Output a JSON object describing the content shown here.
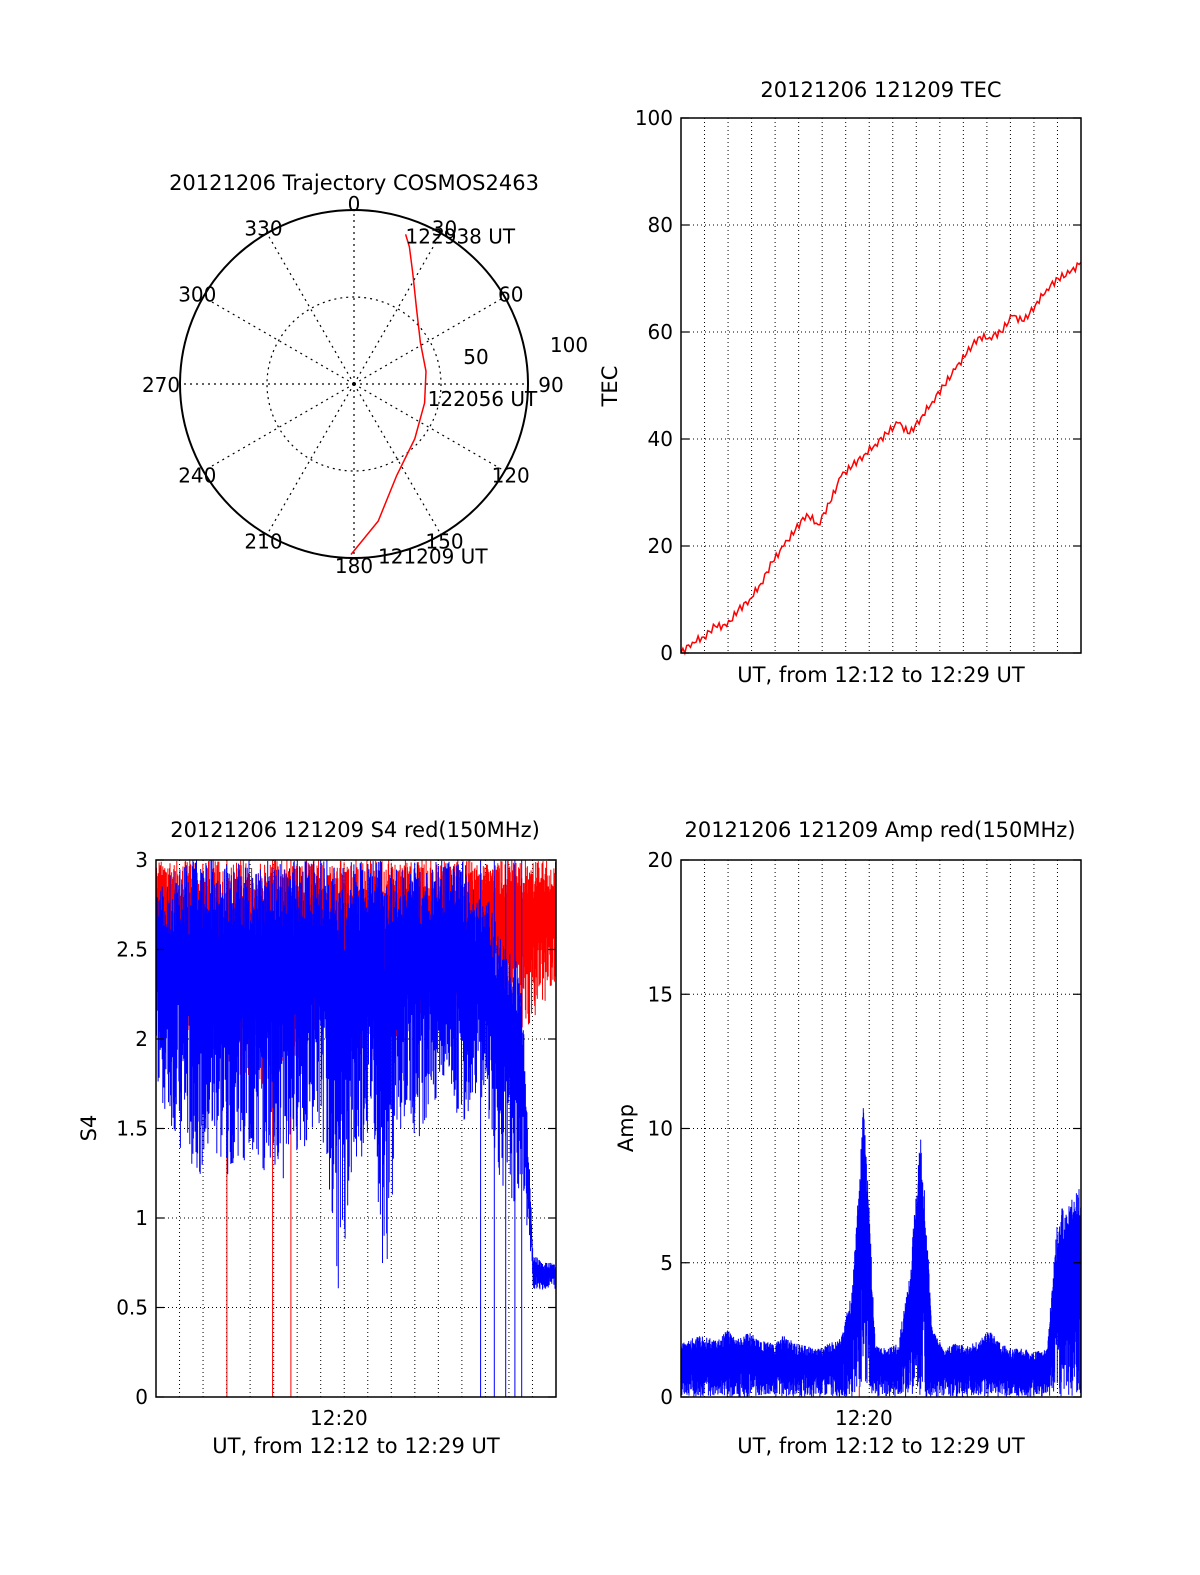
{
  "colors": {
    "red": "#ff0000",
    "blue": "#0000ff",
    "grid": "#000000",
    "background": "#ffffff"
  },
  "chart_data": [
    {
      "id": "trajectory",
      "type": "polar",
      "title": "20121206 Trajectory COSMOS2463",
      "angle_labels": [
        "0",
        "30",
        "60",
        "90",
        "120",
        "150",
        "180",
        "210",
        "240",
        "270",
        "300",
        "330"
      ],
      "radial_ticks": [
        "50",
        "100"
      ],
      "radial_max": 100,
      "grid": true,
      "series": [
        {
          "color": "#ff0000",
          "points": [
            {
              "az": 181,
              "r": 98
            },
            {
              "az": 170,
              "r": 80
            },
            {
              "az": 155,
              "r": 58
            },
            {
              "az": 132,
              "r": 47
            },
            {
              "az": 105,
              "r": 42
            },
            {
              "az": 80,
              "r": 42
            },
            {
              "az": 58,
              "r": 45
            },
            {
              "az": 40,
              "r": 56
            },
            {
              "az": 28,
              "r": 72
            },
            {
              "az": 22,
              "r": 85
            },
            {
              "az": 19,
              "r": 91
            }
          ]
        }
      ],
      "annotations": [
        {
          "text": "122938 UT",
          "az": 19,
          "r": 91
        },
        {
          "text": "122056 UT",
          "az": 100,
          "r": 43
        },
        {
          "text": "121209 UT",
          "az": 172,
          "r": 99
        }
      ]
    },
    {
      "id": "tec",
      "type": "line",
      "title": "20121206 121209 TEC",
      "xlabel": "UT, from 12:12 to 12:29 UT",
      "ylabel": "TEC",
      "ylim": [
        0,
        100
      ],
      "yticks": [
        "0",
        "20",
        "40",
        "60",
        "80",
        "100"
      ],
      "xlim": [
        0,
        17.5
      ],
      "xticks": [],
      "grid": true,
      "series": [
        {
          "color": "#ff0000",
          "x": [
            0,
            0.5,
            1,
            1.5,
            2,
            2.5,
            3,
            3.5,
            4,
            4.5,
            5,
            5.5,
            6,
            6.5,
            7,
            7.5,
            8,
            8.5,
            9,
            9.5,
            10,
            10.5,
            11,
            11.5,
            12,
            12.5,
            13,
            13.5,
            14,
            14.5,
            15,
            15.5,
            16,
            16.5,
            17,
            17.5
          ],
          "y": [
            0,
            2,
            3,
            5,
            5,
            8,
            10,
            13,
            17,
            20,
            23,
            26,
            24,
            28,
            33,
            35,
            37,
            39,
            41,
            43,
            41,
            44,
            47,
            50,
            53,
            56,
            59,
            59,
            60,
            63,
            62,
            65,
            68,
            70,
            71,
            73
          ]
        }
      ]
    },
    {
      "id": "s4",
      "type": "line",
      "title": "20121206 121209 S4 red(150MHz)",
      "xlabel": "UT, from 12:12 to 12:29 UT",
      "ylabel": "S4",
      "ylim": [
        0,
        3
      ],
      "yticks": [
        "0",
        "0.5",
        "1",
        "1.5",
        "2",
        "2.5",
        "3"
      ],
      "xlim": [
        0,
        17.5
      ],
      "xticks": [
        {
          "x": 8,
          "label": "12:20"
        }
      ],
      "grid": true,
      "series": [
        {
          "color": "#ff0000",
          "x": [
            0,
            0.5,
            1,
            1.5,
            2,
            2.5,
            3,
            3.5,
            4,
            4.5,
            5,
            5.5,
            6,
            6.5,
            7,
            7.5,
            8,
            8.5,
            9,
            9.5,
            10,
            10.5,
            11,
            11.5,
            12,
            12.5,
            13,
            13.5,
            14,
            14.5,
            15,
            15.5,
            16,
            16.5,
            17,
            17.5
          ],
          "low": [
            2.3,
            2.2,
            2.1,
            2.0,
            1.9,
            1.9,
            1.8,
            1.8,
            1.8,
            1.7,
            1.8,
            1.8,
            1.8,
            1.9,
            2.0,
            2.0,
            2.0,
            1.9,
            1.9,
            1.9,
            2.0,
            2.0,
            2.1,
            2.1,
            2.0,
            2.1,
            2.2,
            2.1,
            2.1,
            2.2,
            2.2,
            2.0,
            2.0,
            2.1,
            2.2,
            2.3
          ],
          "high": [
            3,
            3,
            3,
            3,
            3,
            3,
            3,
            3,
            3,
            3,
            3,
            3,
            3,
            3,
            3,
            3,
            3,
            3,
            3,
            3,
            3,
            3,
            3,
            3,
            3,
            3,
            3,
            3,
            3,
            3,
            3,
            3,
            3,
            3,
            3,
            3
          ],
          "drops": [
            {
              "x": 3.1,
              "y": 0
            },
            {
              "x": 5.1,
              "y": 0
            },
            {
              "x": 5.9,
              "y": 0
            }
          ]
        },
        {
          "color": "#0000ff",
          "x": [
            0,
            0.5,
            1,
            1.5,
            2,
            2.5,
            3,
            3.5,
            4,
            4.5,
            5,
            5.5,
            6,
            6.5,
            7,
            7.5,
            8,
            8.5,
            9,
            9.5,
            10,
            10.5,
            11,
            11.5,
            12,
            12.5,
            13,
            13.5,
            14,
            14.5,
            15,
            15.5,
            16,
            16.5,
            17,
            17.5
          ],
          "low": [
            1.8,
            1.5,
            1.4,
            1.3,
            1.2,
            1.3,
            1.2,
            1.3,
            1.3,
            1.2,
            1.3,
            1.2,
            1.3,
            1.4,
            1.5,
            1.3,
            0.5,
            1.1,
            1.3,
            1.5,
            0.5,
            1.4,
            1.5,
            1.4,
            1.6,
            1.7,
            1.6,
            1.5,
            1.7,
            1.6,
            1.2,
            1.0,
            1.2,
            0.6,
            0.6,
            0.6
          ],
          "high": [
            2.8,
            2.9,
            3,
            3,
            3,
            3,
            3,
            3,
            3,
            3,
            3,
            3,
            3,
            3,
            3,
            3,
            3,
            3,
            3,
            3,
            3,
            3,
            3,
            3,
            3,
            3,
            3,
            3,
            2.8,
            2.8,
            2.6,
            2.6,
            2.3,
            0.8,
            0.75,
            0.75
          ],
          "drops": [
            {
              "x": 14.2,
              "y": 0
            },
            {
              "x": 14.8,
              "y": 0
            },
            {
              "x": 15.3,
              "y": 0
            },
            {
              "x": 15.7,
              "y": 0
            },
            {
              "x": 16.0,
              "y": 0
            }
          ]
        }
      ]
    },
    {
      "id": "amp",
      "type": "line",
      "title": "20121206 121209 Amp red(150MHz)",
      "xlabel": "UT, from 12:12 to 12:29 UT",
      "ylabel": "Amp",
      "ylim": [
        0,
        20
      ],
      "yticks": [
        "0",
        "5",
        "10",
        "15",
        "20"
      ],
      "xlim": [
        0,
        17.5
      ],
      "xticks": [
        {
          "x": 8,
          "label": "12:20"
        }
      ],
      "grid": true,
      "series": [
        {
          "color": "#0000ff",
          "x": [
            0,
            0.5,
            1,
            1.5,
            2,
            2.5,
            3,
            3.5,
            4,
            4.5,
            5,
            5.5,
            6,
            6.5,
            7,
            7.5,
            8,
            8.5,
            9,
            9.5,
            10,
            10.5,
            11,
            11.5,
            12,
            12.5,
            13,
            13.5,
            14,
            14.5,
            15,
            15.5,
            16,
            16.5,
            17,
            17.5
          ],
          "low": [
            0,
            0,
            0,
            0,
            0,
            0,
            0,
            0,
            0,
            0,
            0,
            0,
            0,
            0,
            0,
            0,
            0,
            0,
            0,
            0,
            0,
            0,
            0,
            0,
            0,
            0,
            0,
            0,
            0,
            0,
            0,
            0,
            0,
            0,
            0,
            0
          ],
          "high": [
            2.0,
            2.2,
            2.3,
            2.1,
            2.5,
            2.2,
            2.4,
            2.1,
            2.0,
            2.3,
            2.0,
            1.9,
            1.8,
            2.0,
            2.2,
            4.0,
            11.5,
            1.9,
            1.8,
            2.0,
            4.5,
            10.0,
            2.5,
            1.8,
            2.0,
            1.9,
            2.1,
            2.5,
            2.0,
            1.8,
            1.8,
            1.7,
            1.8,
            7.0,
            7.3,
            8.0
          ],
          "drops": []
        },
        {
          "color": "#ff0000",
          "x": [
            7.8
          ],
          "low": [
            0
          ],
          "high": [
            0.4
          ],
          "drops": []
        }
      ]
    }
  ]
}
